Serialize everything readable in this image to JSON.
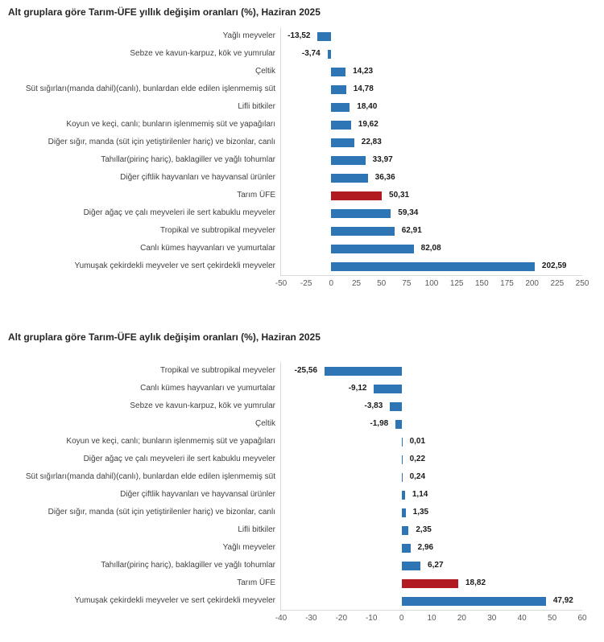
{
  "chart_data": [
    {
      "type": "bar",
      "orientation": "horizontal",
      "title": "Alt gruplara göre Tarım-ÜFE yıllık değişim oranları (%), Haziran 2025",
      "xlabel": "",
      "ylabel": "",
      "xlim": [
        -50,
        250
      ],
      "ticks": [
        -50,
        -25,
        0,
        25,
        50,
        75,
        100,
        125,
        150,
        175,
        200,
        225,
        250
      ],
      "grid": false,
      "legend": "none",
      "bar_color": "#2E75B6",
      "highlight_color": "#B11A21",
      "rows": [
        {
          "label": "Yağlı meyveler",
          "value": -13.52,
          "display": "-13,52",
          "highlight": false
        },
        {
          "label": "Sebze ve kavun-karpuz, kök ve yumrular",
          "value": -3.74,
          "display": "-3,74",
          "highlight": false
        },
        {
          "label": "Çeltik",
          "value": 14.23,
          "display": "14,23",
          "highlight": false
        },
        {
          "label": "Süt sığırları(manda dahil)(canlı), bunlardan elde edilen işlenmemiş süt",
          "value": 14.78,
          "display": "14,78",
          "highlight": false
        },
        {
          "label": "Lifli bitkiler",
          "value": 18.4,
          "display": "18,40",
          "highlight": false
        },
        {
          "label": "Koyun ve keçi, canlı; bunların işlenmemiş süt ve yapağıları",
          "value": 19.62,
          "display": "19,62",
          "highlight": false
        },
        {
          "label": "Diğer sığır, manda (süt için yetiştirilenler hariç) ve bizonlar, canlı",
          "value": 22.83,
          "display": "22,83",
          "highlight": false
        },
        {
          "label": "Tahıllar(pirinç hariç), baklagiller ve yağlı tohumlar",
          "value": 33.97,
          "display": "33,97",
          "highlight": false
        },
        {
          "label": "Diğer çiftlik hayvanları ve hayvansal ürünler",
          "value": 36.36,
          "display": "36,36",
          "highlight": false
        },
        {
          "label": "Tarım ÜFE",
          "value": 50.31,
          "display": "50,31",
          "highlight": true
        },
        {
          "label": "Diğer ağaç ve çalı meyveleri ile sert kabuklu meyveler",
          "value": 59.34,
          "display": "59,34",
          "highlight": false
        },
        {
          "label": "Tropikal ve subtropikal meyveler",
          "value": 62.91,
          "display": "62,91",
          "highlight": false
        },
        {
          "label": "Canlı kümes hayvanları ve yumurtalar",
          "value": 82.08,
          "display": "82,08",
          "highlight": false
        },
        {
          "label": "Yumuşak çekirdekli meyveler ve sert çekirdekli meyveler",
          "value": 202.59,
          "display": "202,59",
          "highlight": false
        }
      ]
    },
    {
      "type": "bar",
      "orientation": "horizontal",
      "title": "Alt gruplara göre Tarım-ÜFE aylık değişim oranları (%), Haziran 2025",
      "xlabel": "",
      "ylabel": "",
      "xlim": [
        -40,
        60
      ],
      "ticks": [
        -40,
        -30,
        -20,
        -10,
        0,
        10,
        20,
        30,
        40,
        50,
        60
      ],
      "grid": false,
      "legend": "none",
      "bar_color": "#2E75B6",
      "highlight_color": "#B11A21",
      "rows": [
        {
          "label": "Tropikal ve subtropikal meyveler",
          "value": -25.56,
          "display": "-25,56",
          "highlight": false
        },
        {
          "label": "Canlı kümes hayvanları ve yumurtalar",
          "value": -9.12,
          "display": "-9,12",
          "highlight": false
        },
        {
          "label": "Sebze ve kavun-karpuz, kök ve yumrular",
          "value": -3.83,
          "display": "-3,83",
          "highlight": false
        },
        {
          "label": "Çeltik",
          "value": -1.98,
          "display": "-1,98",
          "highlight": false
        },
        {
          "label": "Koyun ve keçi, canlı; bunların işlenmemiş süt ve yapağıları",
          "value": 0.01,
          "display": "0,01",
          "highlight": false
        },
        {
          "label": "Diğer ağaç ve çalı meyveleri ile sert kabuklu meyveler",
          "value": 0.22,
          "display": "0,22",
          "highlight": false
        },
        {
          "label": "Süt sığırları(manda dahil)(canlı), bunlardan elde edilen işlenmemiş süt",
          "value": 0.24,
          "display": "0,24",
          "highlight": false
        },
        {
          "label": "Diğer çiftlik hayvanları ve hayvansal ürünler",
          "value": 1.14,
          "display": "1,14",
          "highlight": false
        },
        {
          "label": "Diğer sığır, manda (süt için yetiştirilenler hariç) ve bizonlar, canlı",
          "value": 1.35,
          "display": "1,35",
          "highlight": false
        },
        {
          "label": "Lifli bitkiler",
          "value": 2.35,
          "display": "2,35",
          "highlight": false
        },
        {
          "label": "Yağlı meyveler",
          "value": 2.96,
          "display": "2,96",
          "highlight": false
        },
        {
          "label": "Tahıllar(pirinç hariç), baklagiller ve yağlı tohumlar",
          "value": 6.27,
          "display": "6,27",
          "highlight": false
        },
        {
          "label": "Tarım ÜFE",
          "value": 18.82,
          "display": "18,82",
          "highlight": true
        },
        {
          "label": "Yumuşak çekirdekli meyveler ve sert çekirdekli meyveler",
          "value": 47.92,
          "display": "47,92",
          "highlight": false
        }
      ]
    }
  ]
}
